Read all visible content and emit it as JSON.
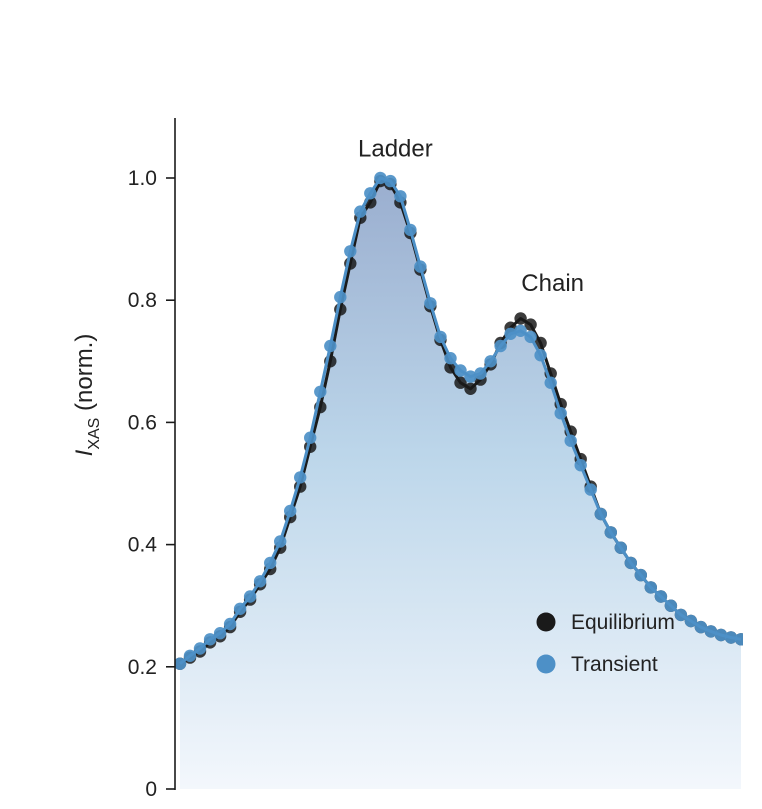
{
  "chart_data": {
    "type": "scatter",
    "ylabel": {
      "main": "I",
      "subscript": "XAS",
      "rest": " (norm.)"
    },
    "ylim": [
      0,
      1.1
    ],
    "yticks": [
      {
        "value": 0,
        "label": "0"
      },
      {
        "value": 0.2,
        "label": "0.2"
      },
      {
        "value": 0.4,
        "label": "0.4"
      },
      {
        "value": 0.6,
        "label": "0.6"
      },
      {
        "value": 0.8,
        "label": "0.8"
      },
      {
        "value": 1.0,
        "label": "1.0"
      }
    ],
    "annotations": [
      {
        "text": "Ladder",
        "x": 21.5,
        "y": 1.035
      },
      {
        "text": "Chain",
        "x": 37.2,
        "y": 0.815
      }
    ],
    "legend": {
      "position": "lower-right"
    },
    "colors": {
      "fill_top": "#9aaecf",
      "fill_mid": "#bcd6ea",
      "fill_bottom": "#f3f7fc"
    },
    "series": [
      {
        "name": "Equilibrium",
        "color": "#1a1a1a",
        "x": [
          0,
          1,
          2,
          3,
          4,
          5,
          6,
          7,
          8,
          9,
          10,
          11,
          12,
          13,
          14,
          15,
          16,
          17,
          18,
          19,
          20,
          21,
          22,
          23,
          24,
          25,
          26,
          27,
          28,
          29,
          30,
          31,
          32,
          33,
          34,
          35,
          36,
          37,
          38,
          39,
          40,
          41,
          42,
          43,
          44,
          45,
          46,
          47,
          48,
          49,
          50,
          51,
          52,
          53,
          54,
          55,
          56
        ],
        "y": [
          0.205,
          0.215,
          0.225,
          0.24,
          0.25,
          0.265,
          0.29,
          0.31,
          0.335,
          0.36,
          0.395,
          0.445,
          0.495,
          0.56,
          0.625,
          0.7,
          0.785,
          0.86,
          0.935,
          0.96,
          0.995,
          0.99,
          0.96,
          0.91,
          0.85,
          0.79,
          0.735,
          0.69,
          0.665,
          0.655,
          0.67,
          0.695,
          0.73,
          0.755,
          0.77,
          0.76,
          0.73,
          0.68,
          0.63,
          0.585,
          0.54,
          0.495,
          0.45,
          0.42,
          0.395,
          0.37,
          0.35,
          0.33,
          0.315,
          0.3,
          0.285,
          0.275,
          0.265,
          0.258,
          0.252,
          0.248,
          0.245
        ]
      },
      {
        "name": "Transient",
        "color": "#4d90c7",
        "x": [
          0,
          1,
          2,
          3,
          4,
          5,
          6,
          7,
          8,
          9,
          10,
          11,
          12,
          13,
          14,
          15,
          16,
          17,
          18,
          19,
          20,
          21,
          22,
          23,
          24,
          25,
          26,
          27,
          28,
          29,
          30,
          31,
          32,
          33,
          34,
          35,
          36,
          37,
          38,
          39,
          40,
          41,
          42,
          43,
          44,
          45,
          46,
          47,
          48,
          49,
          50,
          51,
          52,
          53,
          54,
          55,
          56
        ],
        "y": [
          0.205,
          0.218,
          0.23,
          0.245,
          0.255,
          0.27,
          0.295,
          0.315,
          0.34,
          0.37,
          0.405,
          0.455,
          0.51,
          0.575,
          0.65,
          0.725,
          0.805,
          0.88,
          0.945,
          0.975,
          1.0,
          0.995,
          0.97,
          0.915,
          0.855,
          0.795,
          0.74,
          0.705,
          0.685,
          0.675,
          0.68,
          0.7,
          0.725,
          0.745,
          0.75,
          0.74,
          0.71,
          0.665,
          0.615,
          0.57,
          0.53,
          0.49,
          0.45,
          0.42,
          0.395,
          0.37,
          0.35,
          0.33,
          0.315,
          0.3,
          0.285,
          0.275,
          0.265,
          0.258,
          0.252,
          0.248,
          0.245
        ]
      }
    ]
  }
}
